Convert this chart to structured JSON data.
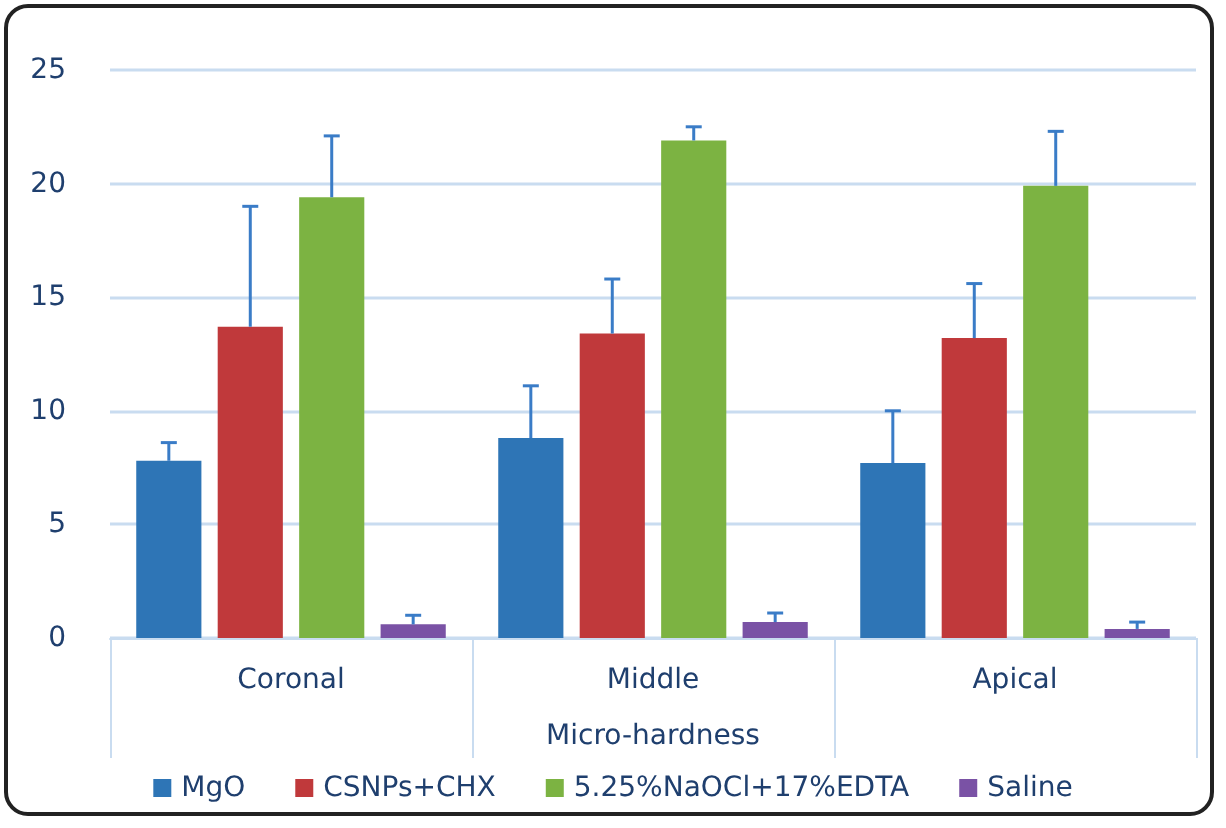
{
  "chart_data": {
    "type": "bar",
    "xlabel": "Micro-hardness",
    "categories": [
      "Coronal",
      "Middle",
      "Apical"
    ],
    "series": [
      {
        "name": "MgO",
        "color": "#2e75b6",
        "values": [
          7.8,
          8.8,
          7.7
        ],
        "errors": [
          0.8,
          2.3,
          2.3
        ]
      },
      {
        "name": "CSNPs+CHX",
        "color": "#c0393b",
        "values": [
          13.7,
          13.4,
          13.2
        ],
        "errors": [
          5.3,
          2.4,
          2.4
        ]
      },
      {
        "name": "5.25%NaOCl+17%EDTA",
        "color": "#7cb342",
        "values": [
          19.4,
          21.9,
          19.9
        ],
        "errors": [
          2.7,
          0.6,
          2.4
        ]
      },
      {
        "name": "Saline",
        "color": "#7a52a5",
        "values": [
          0.6,
          0.7,
          0.4
        ],
        "errors": [
          0.4,
          0.4,
          0.3
        ]
      }
    ],
    "ylim": [
      0,
      25
    ],
    "yticks": [
      0,
      5,
      10,
      15,
      20,
      25
    ],
    "grid": "y",
    "legend": "bottom"
  }
}
